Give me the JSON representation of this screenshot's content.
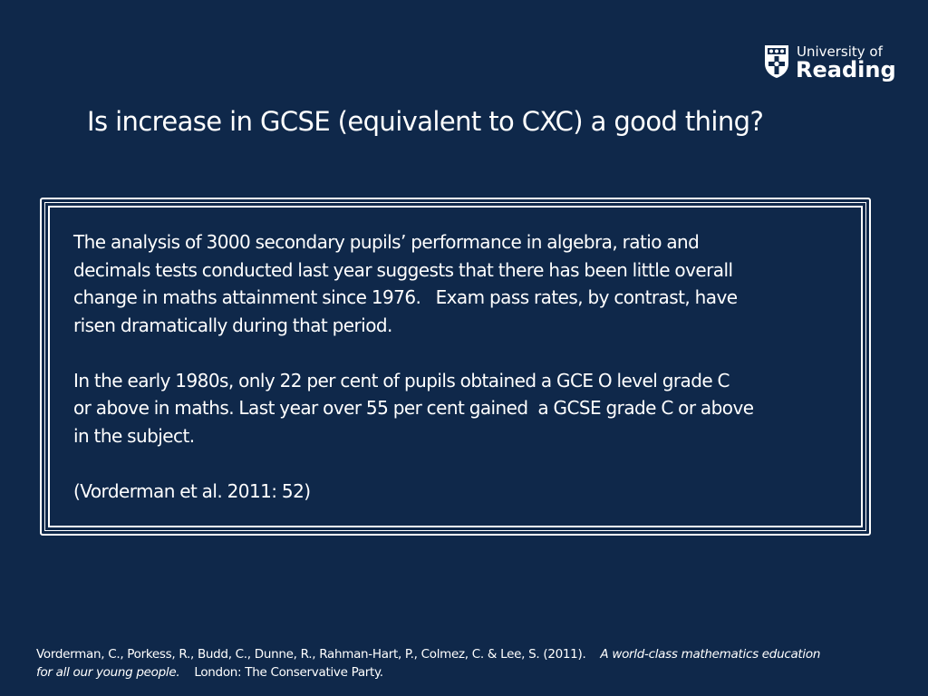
{
  "logo": {
    "line1": "University of",
    "line2": "Reading",
    "icon": "university-crest-icon"
  },
  "slide": {
    "title": "Is increase in GCSE (equivalent to CXC) a good thing?"
  },
  "quote": {
    "paragraph1_line1": "The analysis of 3000 secondary pupils’ performance in algebra, ratio and",
    "paragraph1_line2": "decimals tests conducted last year suggests that there has been little overall",
    "paragraph1_line3": "change in maths attainment since 1976.   Exam pass rates, by contrast, have",
    "paragraph1_line4": "risen dramatically during that period.",
    "paragraph2_line1": "In the early 1980s, only 22 per cent of pupils obtained a GCE O level grade C",
    "paragraph2_line2": "or above in maths. Last year over 55 per cent gained  a GCSE grade C or above",
    "paragraph2_line3": "in the subject.",
    "citation": "(Vorderman et al. 2011: 52)"
  },
  "reference": {
    "authors": "Vorderman, C., Porkess, R., Budd, C., Dunne, R., Rahman-Hart, P., Colmez, C. & Lee, S. (2011).",
    "title_part1": "A world-class mathematics education",
    "title_part2": "for all our young people.",
    "publisher": "London: The Conservative Party."
  },
  "colors": {
    "background": "#0f284a",
    "text": "#ffffff"
  }
}
